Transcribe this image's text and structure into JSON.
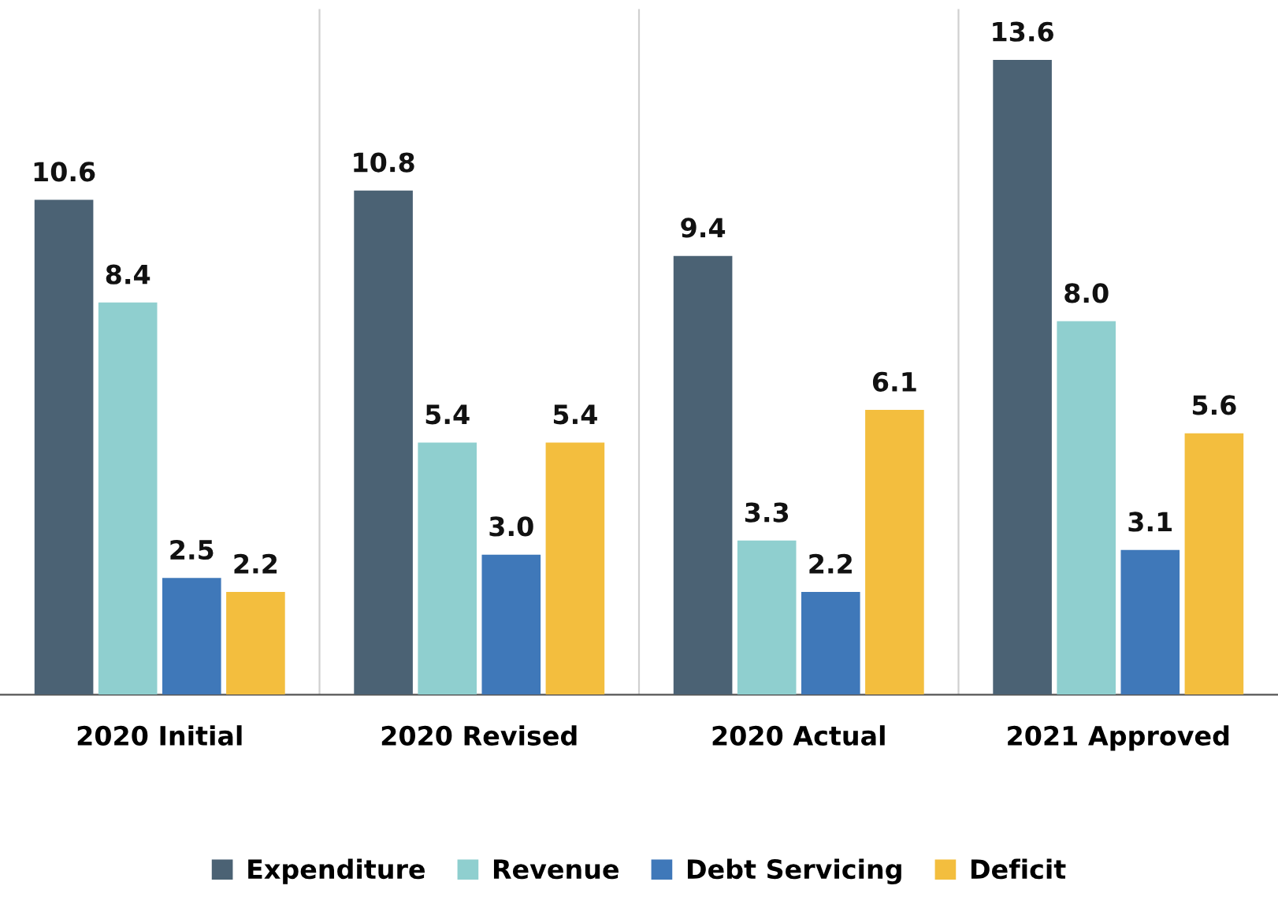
{
  "chart_data": {
    "type": "bar",
    "categories": [
      "2020 Initial",
      "2020 Revised",
      "2020 Actual",
      "2021 Approved"
    ],
    "series": [
      {
        "name": "Expenditure",
        "color": "#4b6274",
        "values": [
          10.6,
          10.8,
          9.4,
          13.6
        ],
        "value_labels": [
          "10.6",
          "10.8",
          "9.4",
          "13.6"
        ]
      },
      {
        "name": "Revenue",
        "color": "#8fcfcf",
        "values": [
          8.4,
          5.4,
          3.3,
          8.0
        ],
        "value_labels": [
          "8.4",
          "5.4",
          "3.3",
          "8.0"
        ]
      },
      {
        "name": "Debt Servicing",
        "color": "#3f78b9",
        "values": [
          2.5,
          3.0,
          2.2,
          3.1
        ],
        "value_labels": [
          "2.5",
          "3.0",
          "2.2",
          "3.1"
        ]
      },
      {
        "name": "Deficit",
        "color": "#f3be3e",
        "values": [
          2.2,
          5.4,
          6.1,
          5.6
        ],
        "value_labels": [
          "2.2",
          "5.4",
          "6.1",
          "5.6"
        ]
      }
    ],
    "grid": "x",
    "legend": "bottom"
  }
}
